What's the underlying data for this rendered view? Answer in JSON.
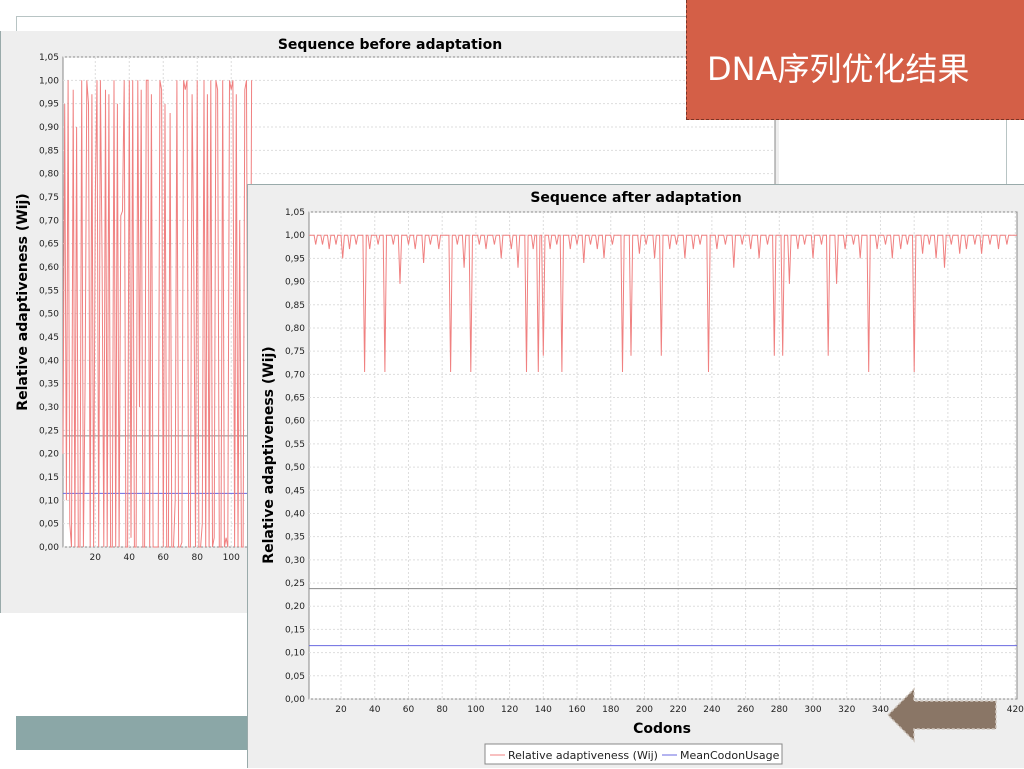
{
  "slide": {
    "title": "DNA序列优化结果",
    "accent_color": "#d45f47",
    "arrow_color": "#8a7666",
    "arrow_icon": "left-arrow-icon"
  },
  "chart_data": [
    {
      "type": "line",
      "title": "Sequence before adaptation",
      "xlabel": "",
      "ylabel": "Relative adaptiveness (Wij)",
      "ylim": [
        0,
        1.05
      ],
      "y_ticks": [
        "0,00",
        "0,05",
        "0,10",
        "0,15",
        "0,20",
        "0,25",
        "0,30",
        "0,35",
        "0,40",
        "0,45",
        "0,50",
        "0,55",
        "0,60",
        "0,65",
        "0,70",
        "0,75",
        "0,80",
        "0,85",
        "0,90",
        "0,95",
        "1,00",
        "1,05"
      ],
      "x_ticks": [
        "20",
        "40",
        "60",
        "80",
        "100"
      ],
      "grid": true,
      "series": [
        {
          "name": "Relative adaptiveness (Wij)",
          "color": "#f08080",
          "x_start": 1,
          "values": [
            0.2,
            0.95,
            0.1,
            1.0,
            0.05,
            0.0,
            0.98,
            0.0,
            0.9,
            0.0,
            0.0,
            1.0,
            0.0,
            0.35,
            1.0,
            0.95,
            0.0,
            0.97,
            0.0,
            0.75,
            1.0,
            0.0,
            1.0,
            0.61,
            0.0,
            0.98,
            0.0,
            0.97,
            0.0,
            0.0,
            1.0,
            0.0,
            0.95,
            0.0,
            0.71,
            0.72,
            1.0,
            0.0,
            0.0,
            1.0,
            0.02,
            1.0,
            0.0,
            0.0,
            1.0,
            0.3,
            0.98,
            0.0,
            0.0,
            1.0,
            1.0,
            0.0,
            0.97,
            0.0,
            0.0,
            0.0,
            0.0,
            1.0,
            0.98,
            0.0,
            0.95,
            0.0,
            0.0,
            0.93,
            0.0,
            0.0,
            0.1,
            1.0,
            0.0,
            0.0,
            0.01,
            1.0,
            0.98,
            1.0,
            0.0,
            0.0,
            0.97,
            0.61,
            0.0,
            1.0,
            0.0,
            0.0,
            0.05,
            1.0,
            0.0,
            0.97,
            0.0,
            1.0,
            0.0,
            0.02,
            1.0,
            0.98,
            0.0,
            0.0,
            1.0,
            0.0,
            0.02,
            0.0,
            1.0,
            0.98,
            1.0,
            0.0,
            0.97,
            0.0,
            0.7,
            0.0,
            0.0,
            0.98,
            1.0,
            0.0,
            0.02,
            1.0
          ]
        },
        {
          "name": "MeanCodonUsage",
          "color": "#6a6ae0",
          "constant": 0.115
        },
        {
          "name": "",
          "color": "#8a8a8a",
          "constant": 0.238
        }
      ]
    },
    {
      "type": "line",
      "title": "Sequence after adaptation",
      "xlabel": "Codons",
      "ylabel": "Relative adaptiveness (Wij)",
      "ylim": [
        0,
        1.05
      ],
      "xlim": [
        1,
        421
      ],
      "y_ticks": [
        "0,00",
        "0,05",
        "0,10",
        "0,15",
        "0,20",
        "0,25",
        "0,30",
        "0,35",
        "0,40",
        "0,45",
        "0,50",
        "0,55",
        "0,60",
        "0,65",
        "0,70",
        "0,75",
        "0,80",
        "0,85",
        "0,90",
        "0,95",
        "1,00",
        "1,05"
      ],
      "x_ticks": [
        "20",
        "40",
        "60",
        "80",
        "100",
        "120",
        "140",
        "160",
        "180",
        "200",
        "220",
        "240",
        "260",
        "280",
        "300",
        "320",
        "340",
        "360",
        "380",
        "400",
        "420"
      ],
      "grid": true,
      "baseline": 1.0,
      "dips": [
        [
          5,
          0.98
        ],
        [
          9,
          0.98
        ],
        [
          13,
          0.97
        ],
        [
          17,
          0.98
        ],
        [
          21,
          0.95
        ],
        [
          25,
          0.97
        ],
        [
          29,
          0.98
        ],
        [
          34,
          0.705
        ],
        [
          37,
          0.97
        ],
        [
          42,
          0.98
        ],
        [
          46,
          0.705
        ],
        [
          51,
          0.98
        ],
        [
          55,
          0.895
        ],
        [
          60,
          0.98
        ],
        [
          64,
          0.97
        ],
        [
          69,
          0.94
        ],
        [
          73,
          0.98
        ],
        [
          78,
          0.97
        ],
        [
          85,
          0.705
        ],
        [
          89,
          0.98
        ],
        [
          93,
          0.93
        ],
        [
          97,
          0.705
        ],
        [
          102,
          0.98
        ],
        [
          106,
          0.97
        ],
        [
          111,
          0.98
        ],
        [
          115,
          0.95
        ],
        [
          121,
          0.97
        ],
        [
          125,
          0.93
        ],
        [
          130,
          0.705
        ],
        [
          134,
          0.97
        ],
        [
          137,
          0.705
        ],
        [
          140,
          0.74
        ],
        [
          144,
          0.97
        ],
        [
          148,
          0.98
        ],
        [
          151,
          0.705
        ],
        [
          156,
          0.97
        ],
        [
          160,
          0.98
        ],
        [
          164,
          0.94
        ],
        [
          168,
          0.98
        ],
        [
          172,
          0.97
        ],
        [
          176,
          0.95
        ],
        [
          181,
          0.98
        ],
        [
          187,
          0.705
        ],
        [
          192,
          0.74
        ],
        [
          197,
          0.96
        ],
        [
          201,
          0.98
        ],
        [
          206,
          0.95
        ],
        [
          210,
          0.74
        ],
        [
          215,
          0.97
        ],
        [
          219,
          0.98
        ],
        [
          224,
          0.95
        ],
        [
          229,
          0.97
        ],
        [
          233,
          0.98
        ],
        [
          238,
          0.705
        ],
        [
          243,
          0.97
        ],
        [
          248,
          0.98
        ],
        [
          253,
          0.93
        ],
        [
          258,
          0.98
        ],
        [
          263,
          0.97
        ],
        [
          268,
          0.95
        ],
        [
          273,
          0.98
        ],
        [
          277,
          0.74
        ],
        [
          282,
          0.74
        ],
        [
          286,
          0.895
        ],
        [
          291,
          0.97
        ],
        [
          295,
          0.98
        ],
        [
          300,
          0.95
        ],
        [
          305,
          0.98
        ],
        [
          309,
          0.74
        ],
        [
          314,
          0.895
        ],
        [
          319,
          0.97
        ],
        [
          324,
          0.98
        ],
        [
          328,
          0.95
        ],
        [
          333,
          0.705
        ],
        [
          338,
          0.97
        ],
        [
          343,
          0.98
        ],
        [
          347,
          0.95
        ],
        [
          352,
          0.97
        ],
        [
          356,
          0.98
        ],
        [
          360,
          0.705
        ],
        [
          365,
          0.96
        ],
        [
          369,
          0.98
        ],
        [
          373,
          0.95
        ],
        [
          378,
          0.93
        ],
        [
          382,
          0.98
        ],
        [
          387,
          0.96
        ],
        [
          391,
          0.97
        ],
        [
          396,
          0.98
        ],
        [
          400,
          0.96
        ],
        [
          405,
          0.98
        ],
        [
          410,
          0.97
        ],
        [
          415,
          0.98
        ]
      ],
      "series": [
        {
          "name": "Relative adaptiveness (Wij)",
          "color": "#f08080"
        },
        {
          "name": "MeanCodonUsage",
          "color": "#6a6ae0",
          "constant": 0.115
        },
        {
          "name": "",
          "color": "#8a8a8a",
          "constant": 0.238
        }
      ],
      "legend": [
        "Relative adaptiveness (Wij)",
        "MeanCodonUsage"
      ],
      "legend_position": "bottom"
    }
  ]
}
